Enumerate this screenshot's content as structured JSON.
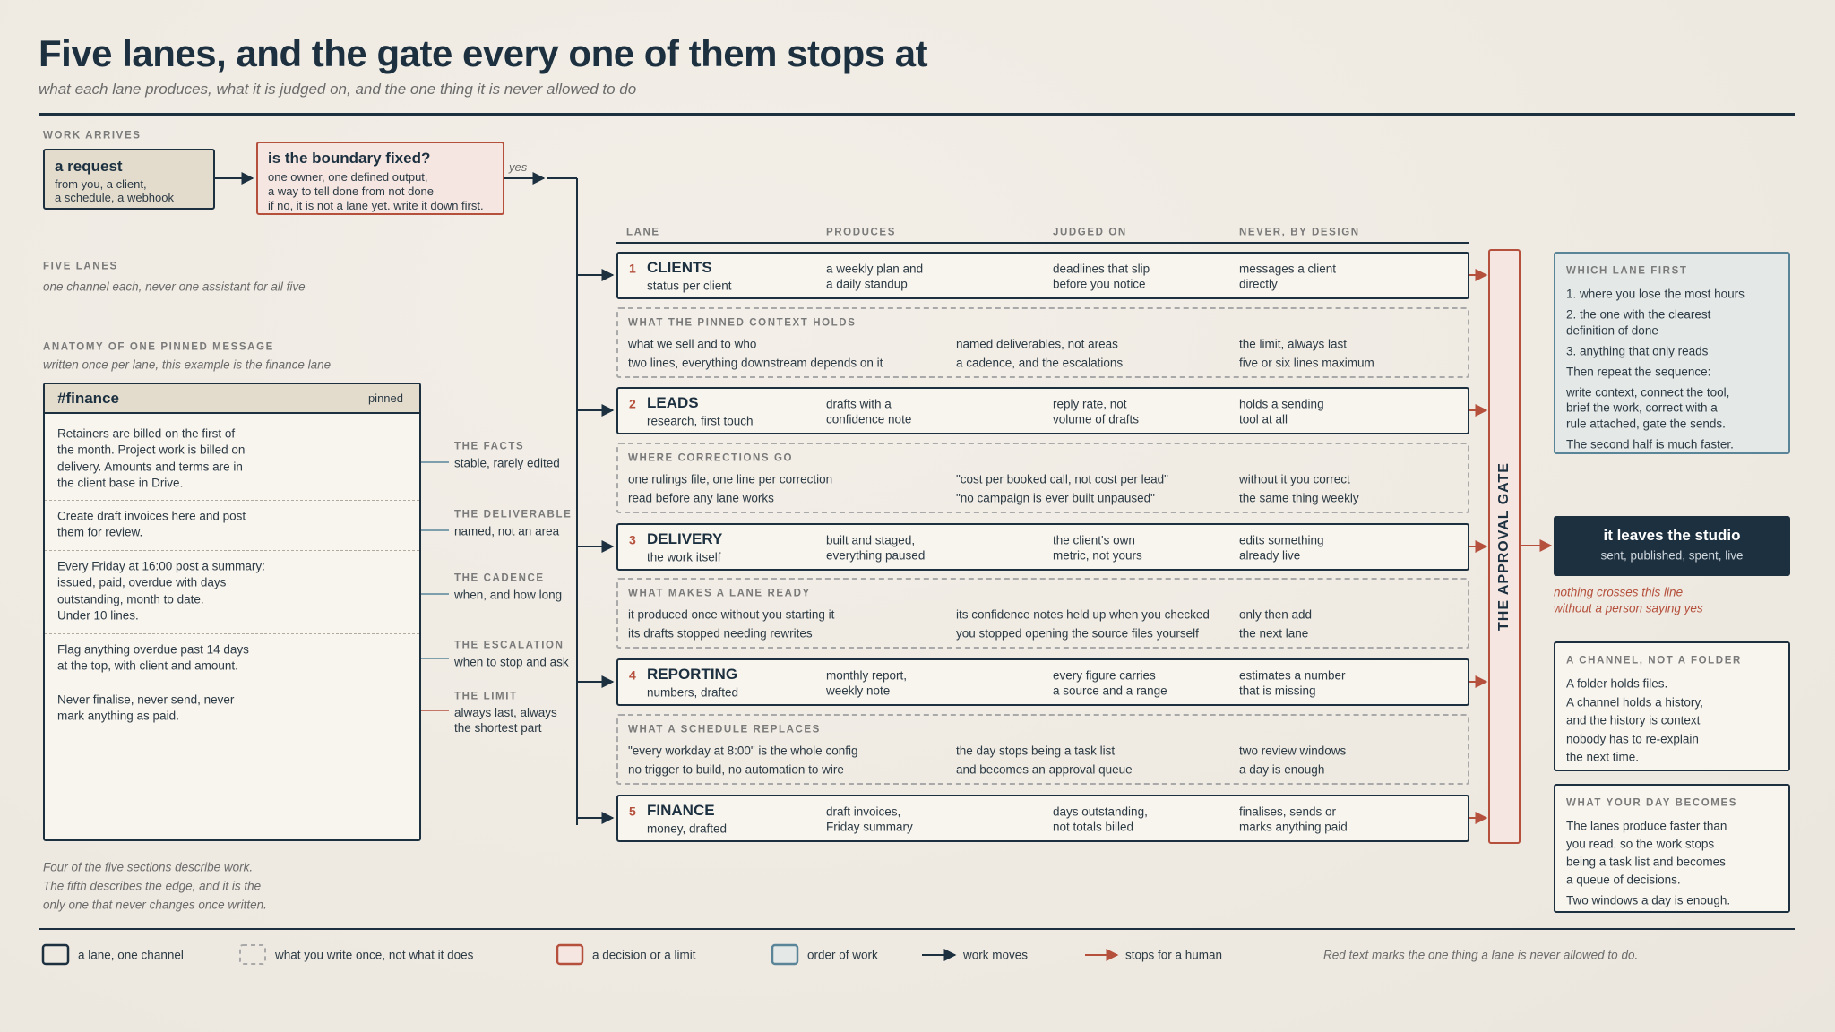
{
  "header": {
    "title": "Five lanes, and the gate every one of them stops at",
    "subtitle": "what each lane produces, what it is judged on, and the one thing it is never allowed to do"
  },
  "intake": {
    "label": "WORK ARRIVES",
    "request": {
      "title": "a request",
      "lines": [
        "from you, a client,",
        "a schedule, a webhook"
      ]
    },
    "decision": {
      "title": "is the boundary fixed?",
      "lines": [
        "one owner, one defined output,",
        "a way to tell done from not done",
        "if no, it is not a lane yet. write it down first."
      ]
    },
    "yes": "yes"
  },
  "left": {
    "lanes_label": "FIVE LANES",
    "lanes_note": "one channel each, never one assistant for all five",
    "anatomy_label": "ANATOMY OF ONE PINNED MESSAGE",
    "anatomy_note": "written once per lane, this example is the finance lane"
  },
  "finance_card": {
    "channel": "#finance",
    "tag": "pinned",
    "sections": [
      {
        "lines": [
          "Retainers are billed on the first of",
          "the month. Project work is billed on",
          "delivery. Amounts and terms are in",
          "the client base in Drive."
        ],
        "label": "THE FACTS",
        "note": "stable, rarely edited"
      },
      {
        "lines": [
          "Create draft invoices here and post",
          "them for review."
        ],
        "label": "THE DELIVERABLE",
        "note": "named, not an area"
      },
      {
        "lines": [
          "Every Friday at 16:00 post a summary:",
          "issued, paid, overdue with days",
          "outstanding, month to date.",
          "Under 10 lines."
        ],
        "label": "THE CADENCE",
        "note": "when, and how long"
      },
      {
        "lines": [
          "Flag anything overdue past 14 days",
          "at the top, with client and amount."
        ],
        "label": "THE ESCALATION",
        "note": "when to stop and ask"
      },
      {
        "lines": [
          "Never finalise, never send, never",
          "mark anything as paid."
        ],
        "label": "THE LIMIT",
        "note": "always last, always the shortest part"
      }
    ]
  },
  "footnote": [
    "Four of the five sections describe work.",
    "The fifth describes the edge, and it is the",
    "only one that never changes once written."
  ],
  "table": {
    "headers": [
      "LANE",
      "PRODUCES",
      "JUDGED ON",
      "NEVER, BY DESIGN"
    ],
    "lanes": [
      {
        "number": "1",
        "name": "CLIENTS",
        "sub": "status per client",
        "produces": [
          "a weekly plan and",
          "a daily standup"
        ],
        "judged": [
          "deadlines that slip",
          "before you notice"
        ],
        "never": [
          "messages a client",
          "directly"
        ]
      },
      {
        "number": "2",
        "name": "LEADS",
        "sub": "research, first touch",
        "produces": [
          "drafts with a",
          "confidence note"
        ],
        "judged": [
          "reply rate, not",
          "volume of drafts"
        ],
        "never": [
          "holds a sending",
          "tool at all"
        ]
      },
      {
        "number": "3",
        "name": "DELIVERY",
        "sub": "the work itself",
        "produces": [
          "built and staged,",
          "everything paused"
        ],
        "judged": [
          "the client's own",
          "metric, not yours"
        ],
        "never": [
          "edits something",
          "already live"
        ]
      },
      {
        "number": "4",
        "name": "REPORTING",
        "sub": "numbers, drafted",
        "produces": [
          "monthly report,",
          "weekly note"
        ],
        "judged": [
          "every figure carries",
          "a source and a range"
        ],
        "never": [
          "estimates a number",
          "that is missing"
        ]
      },
      {
        "number": "5",
        "name": "FINANCE",
        "sub": "money, drafted",
        "produces": [
          "draft invoices,",
          "Friday summary"
        ],
        "judged": [
          "days outstanding,",
          "not totals billed"
        ],
        "never": [
          "finalises, sends or",
          "marks anything paid"
        ]
      }
    ],
    "notes": [
      {
        "title": "WHAT THE PINNED CONTEXT HOLDS",
        "rows": [
          [
            "what we sell and to who",
            "named deliverables, not areas",
            "the limit, always last"
          ],
          [
            "two lines, everything downstream depends on it",
            "a cadence, and the escalations",
            "five or six lines maximum"
          ]
        ]
      },
      {
        "title": "WHERE CORRECTIONS GO",
        "rows": [
          [
            "one rulings file, one line per correction",
            "\"cost per booked call, not cost per lead\"",
            "without it you correct"
          ],
          [
            "read before any lane works",
            "\"no campaign is ever built unpaused\"",
            "the same thing weekly"
          ]
        ]
      },
      {
        "title": "WHAT MAKES A LANE READY",
        "rows": [
          [
            "it produced once without you starting it",
            "its confidence notes held up when you checked",
            "only then add"
          ],
          [
            "its drafts stopped needing rewrites",
            "you stopped opening the source files yourself",
            "the next lane"
          ]
        ]
      },
      {
        "title": "WHAT A SCHEDULE REPLACES",
        "rows": [
          [
            "\"every workday at 8:00\" is the whole config",
            "the day stops being a task list",
            "two review windows"
          ],
          [
            "no trigger to build, no automation to wire",
            "and becomes an approval queue",
            "a day is enough"
          ]
        ]
      }
    ]
  },
  "gate": "THE APPROVAL GATE",
  "exit": {
    "title": "it leaves the studio",
    "sub": "sent, published, spent, live",
    "warning": [
      "nothing crosses this line",
      "without a person saying yes"
    ]
  },
  "panels": [
    {
      "title": "WHICH LANE FIRST",
      "paragraphs": [
        [
          "1. where you lose the most hours"
        ],
        [
          "2. the one with the clearest",
          "definition of done"
        ],
        [
          "3. anything that only reads"
        ],
        [
          "Then repeat the sequence:"
        ],
        [
          "write context, connect the tool,",
          "brief the work, correct with a",
          "rule attached, gate the sends."
        ],
        [
          "The second half is much faster."
        ]
      ]
    },
    {
      "title": "A CHANNEL, NOT A FOLDER",
      "paragraphs": [
        [
          "A folder holds files.",
          "A channel holds a history,",
          "and the history is context",
          "nobody has to re-explain",
          "the next time."
        ]
      ]
    },
    {
      "title": "WHAT YOUR DAY BECOMES",
      "paragraphs": [
        [
          "The lanes produce faster than",
          "you read, so the work stops",
          "being a task list and becomes",
          "a queue of decisions."
        ],
        [
          "Two windows a day is enough."
        ]
      ]
    }
  ],
  "legend": {
    "items": [
      "a lane, one channel",
      "what you write once, not what it does",
      "a decision or a limit",
      "order of work",
      "work moves",
      "stops for a human"
    ],
    "note": "Red text marks the one thing a lane is never allowed to do."
  }
}
